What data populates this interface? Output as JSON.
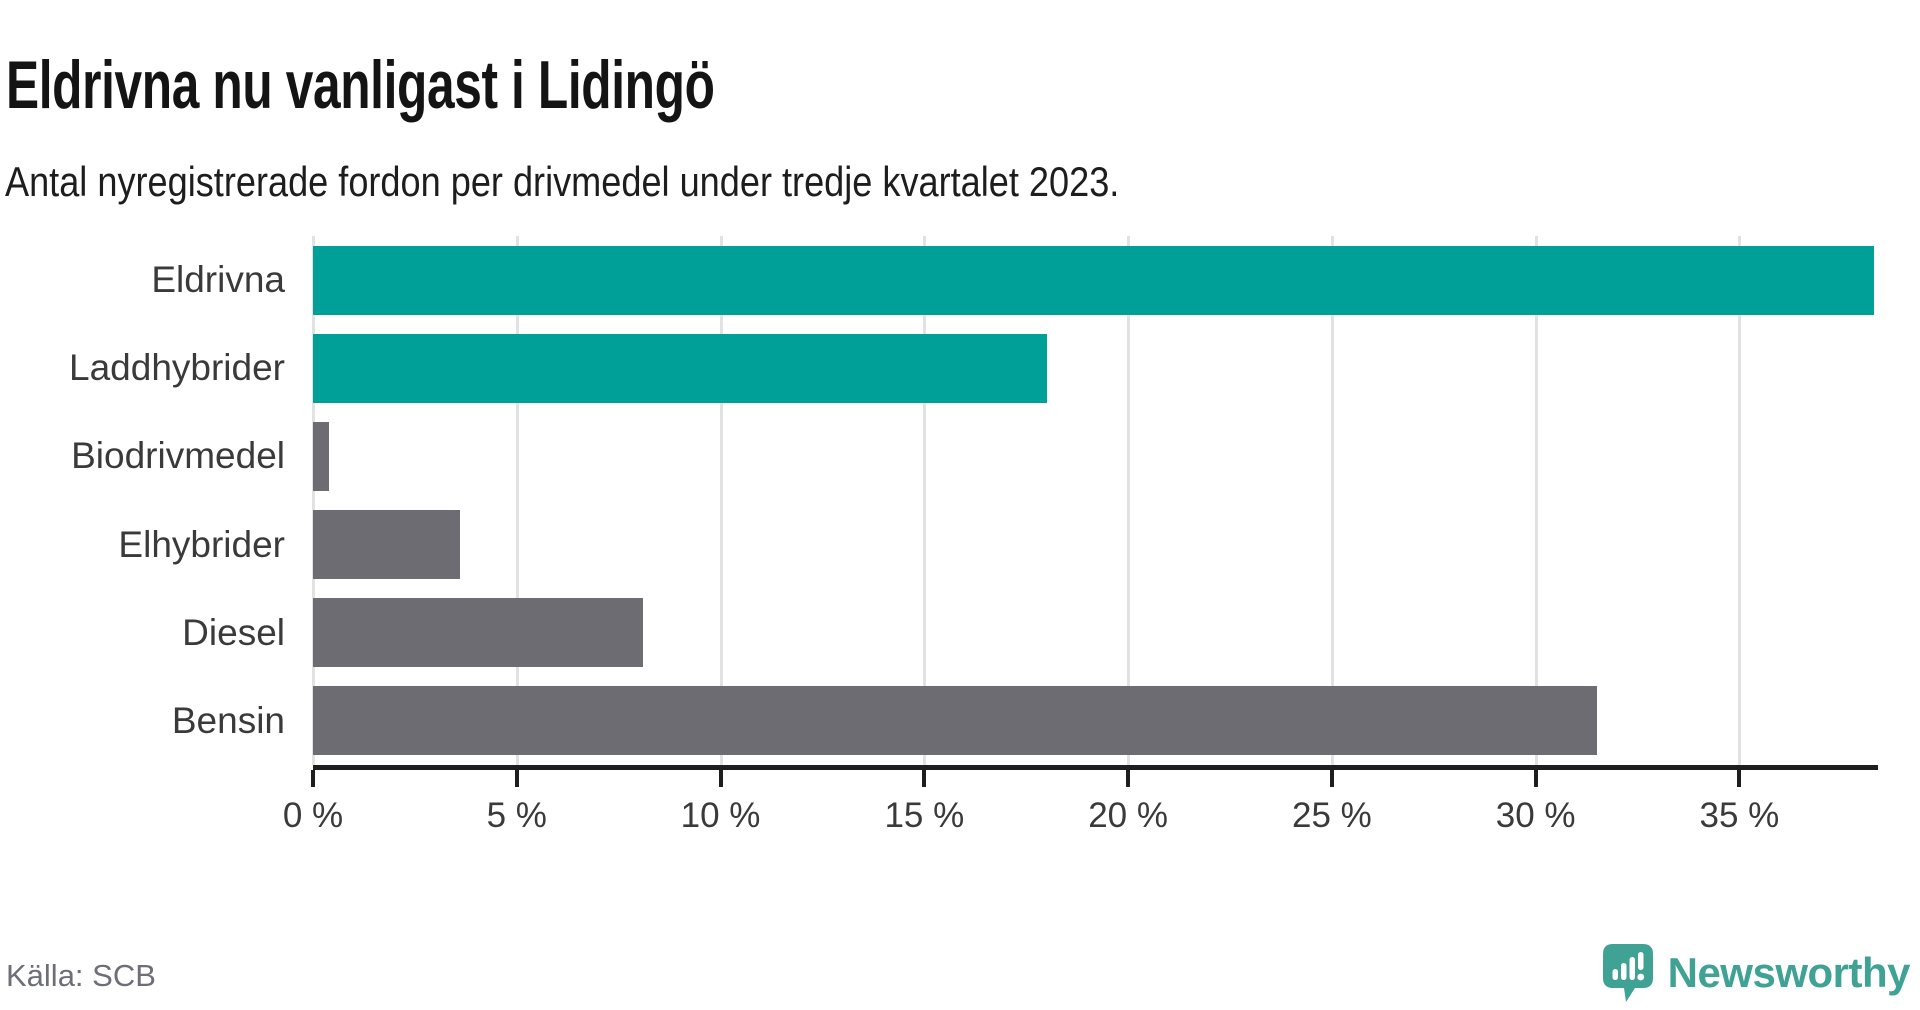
{
  "header": {
    "title": "Eldrivna nu vanligast i Lidingö",
    "subtitle": "Antal nyregistrerade fordon per drivmedel under tredje kvartalet 2023."
  },
  "chart_data": {
    "type": "bar",
    "orientation": "horizontal",
    "title": "Eldrivna nu vanligast i Lidingö",
    "subtitle": "Antal nyregistrerade fordon per drivmedel under tredje kvartalet 2023.",
    "categories": [
      "Eldrivna",
      "Laddhybrider",
      "Biodrivmedel",
      "Elhybrider",
      "Diesel",
      "Bensin"
    ],
    "values": [
      38.3,
      18.0,
      0.4,
      3.6,
      8.1,
      31.5
    ],
    "unit": "%",
    "bar_colors": [
      "#00a099",
      "#00a099",
      "#6c6c72",
      "#6c6c72",
      "#6c6c72",
      "#6c6c72"
    ],
    "xlabel": "",
    "ylabel": "",
    "xlim": [
      0,
      38.4
    ],
    "xticks": [
      0,
      5,
      10,
      15,
      20,
      25,
      30,
      35
    ],
    "xtick_labels": [
      "0 %",
      "5 %",
      "10 %",
      "15 %",
      "20 %",
      "25 %",
      "30 %",
      "35 %"
    ],
    "grid": true,
    "legend": false
  },
  "colors": {
    "highlight": "#00a099",
    "neutral": "#6c6c72",
    "gridline": "#e2e2e2",
    "axis": "#1e1e1e",
    "brand": "#3fa294"
  },
  "footer": {
    "source": "Källa: SCB",
    "brand": "Newsworthy"
  }
}
